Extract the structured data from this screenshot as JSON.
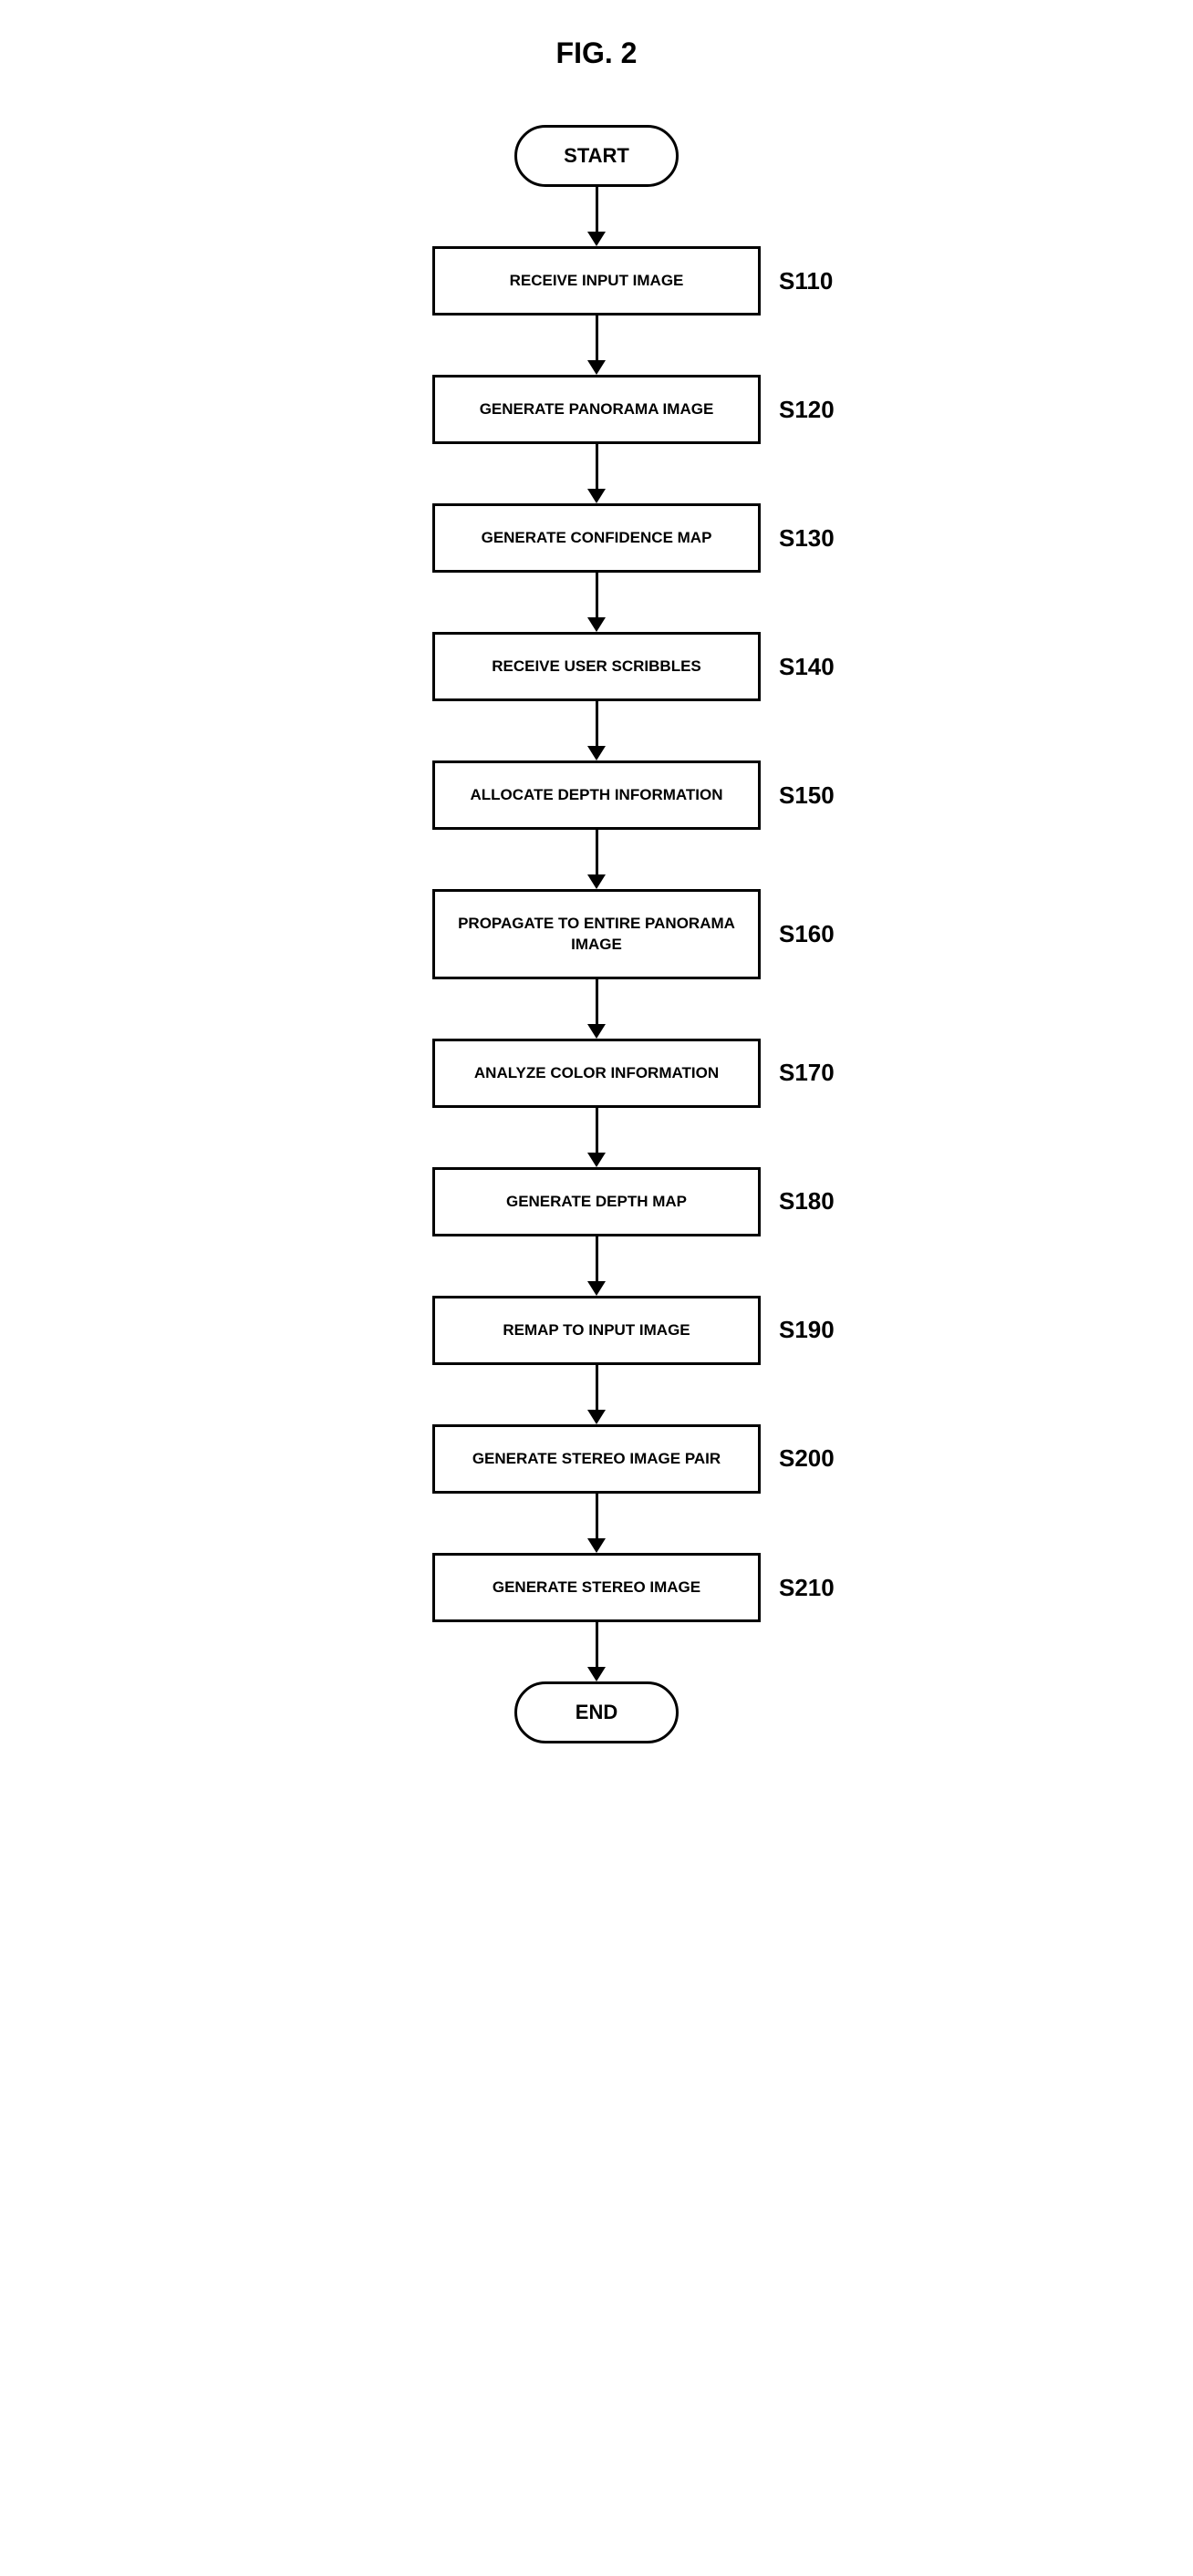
{
  "figure_title": "FIG. 2",
  "flowchart": {
    "type": "flowchart",
    "start_label": "START",
    "end_label": "END",
    "colors": {
      "background": "#ffffff",
      "border": "#000000",
      "text": "#000000",
      "arrow": "#000000"
    },
    "typography": {
      "title_fontsize": 32,
      "terminal_fontsize": 22,
      "process_fontsize": 17,
      "label_fontsize": 26,
      "font_family": "Arial",
      "font_weight": "bold"
    },
    "box_styling": {
      "border_width": 3,
      "terminal_border_radius": 50,
      "process_width": 360,
      "arrow_length": 50,
      "arrow_line_width": 3,
      "arrow_head_width": 20,
      "arrow_head_height": 16
    },
    "steps": [
      {
        "label": "RECEIVE INPUT IMAGE",
        "id": "S110"
      },
      {
        "label": "GENERATE PANORAMA IMAGE",
        "id": "S120"
      },
      {
        "label": "GENERATE CONFIDENCE MAP",
        "id": "S130"
      },
      {
        "label": "RECEIVE USER SCRIBBLES",
        "id": "S140"
      },
      {
        "label": "ALLOCATE DEPTH INFORMATION",
        "id": "S150"
      },
      {
        "label": "PROPAGATE TO ENTIRE PANORAMA IMAGE",
        "id": "S160"
      },
      {
        "label": "ANALYZE COLOR INFORMATION",
        "id": "S170"
      },
      {
        "label": "GENERATE DEPTH MAP",
        "id": "S180"
      },
      {
        "label": "REMAP TO INPUT IMAGE",
        "id": "S190"
      },
      {
        "label": "GENERATE STEREO IMAGE PAIR",
        "id": "S200"
      },
      {
        "label": "GENERATE STEREO IMAGE",
        "id": "S210"
      }
    ]
  }
}
